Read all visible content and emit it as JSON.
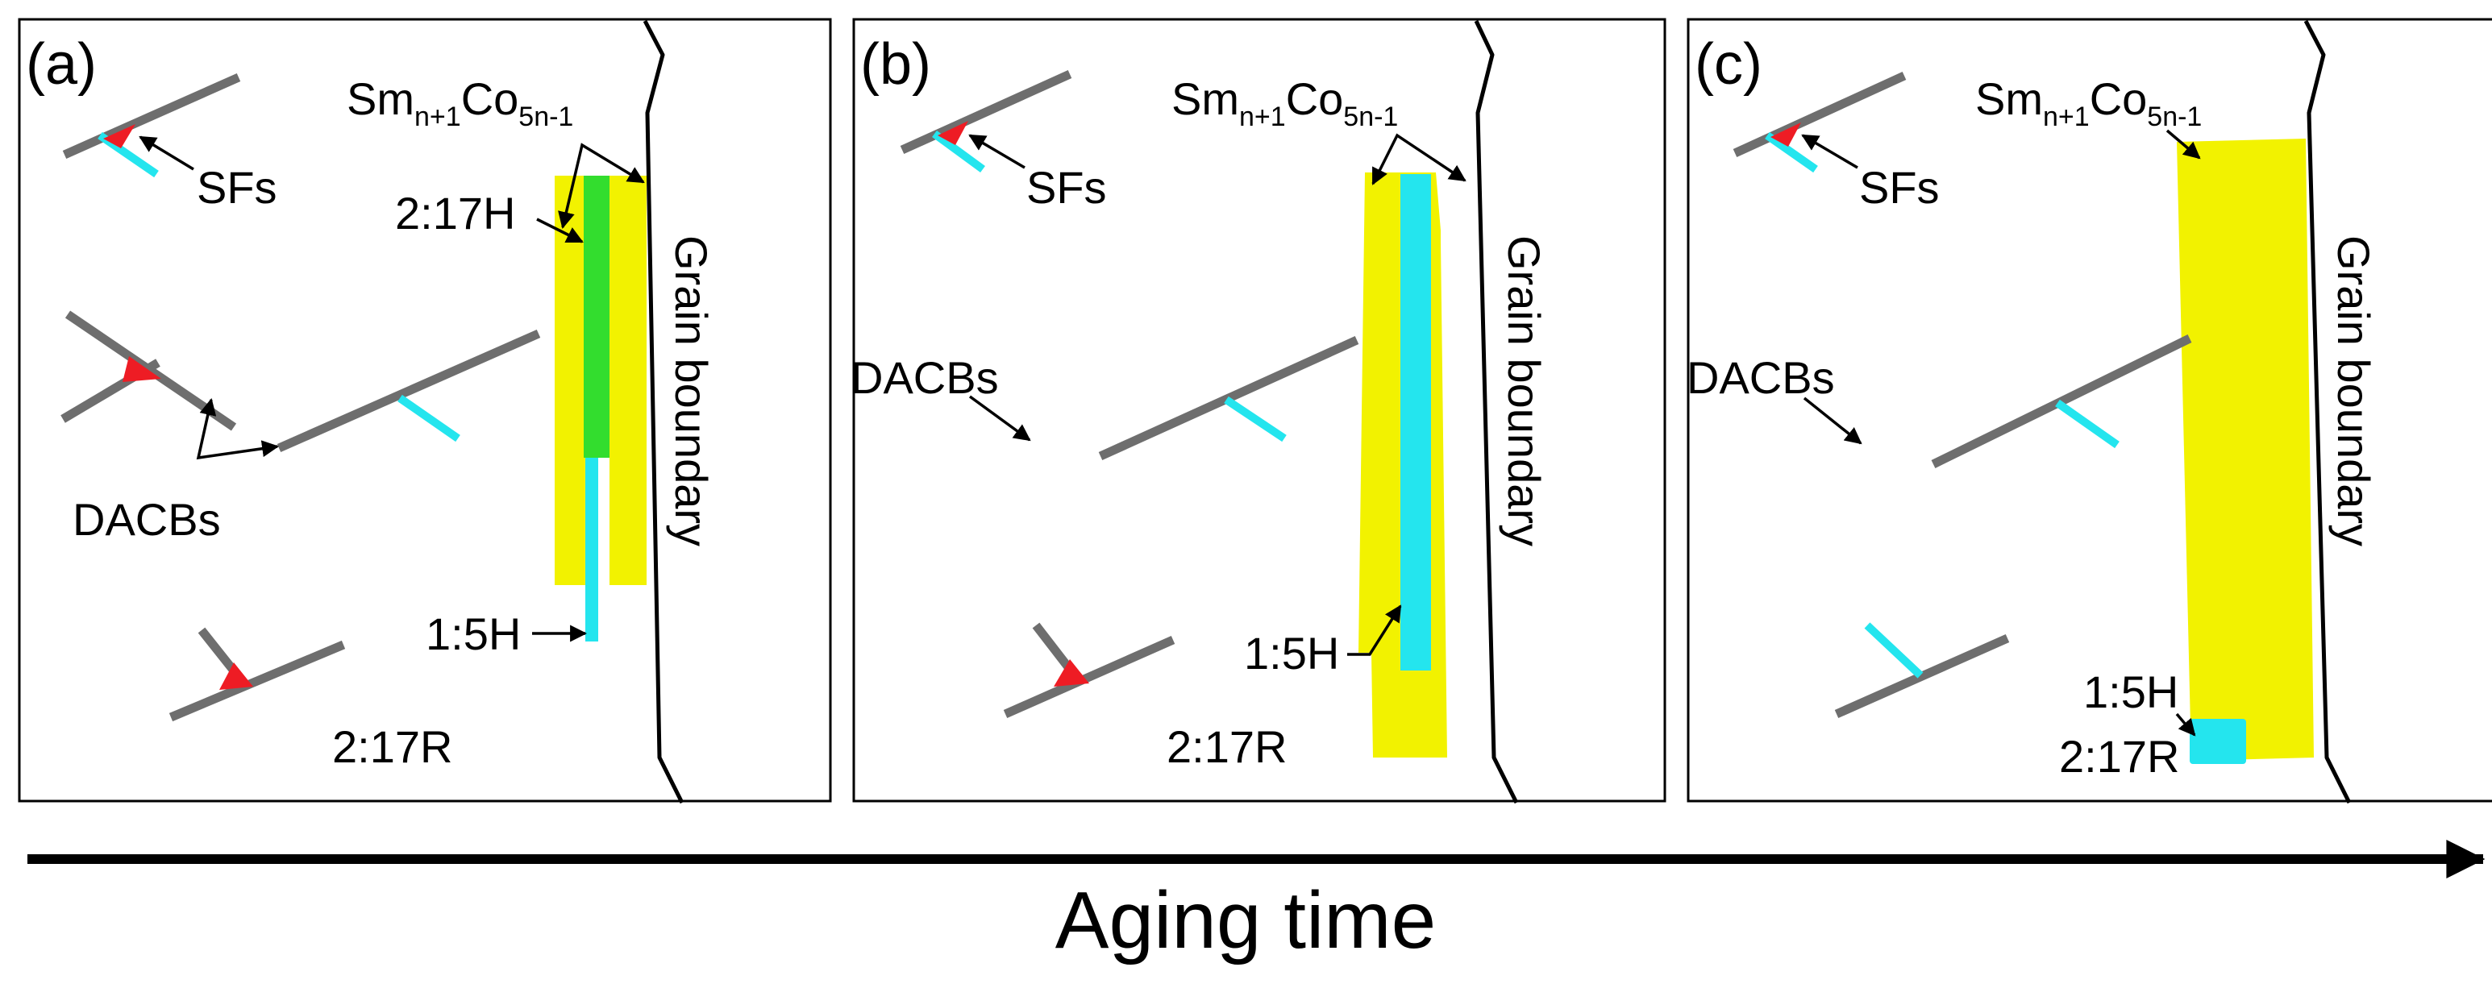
{
  "colors": {
    "dacb": "#6e6e6e",
    "sf": "#ee1c24",
    "cyan_phase": "#24e5ee",
    "yellow_phase": "#f2f200",
    "green_phase": "#33dd2e",
    "boundary": "#000000",
    "frame": "#000000"
  },
  "panels": [
    {
      "label": "(a)",
      "labels": {
        "sm_prefix": "Sm",
        "sm_sub1": "n+1",
        "co": "Co",
        "co_sub": "5n-1",
        "sfs": "SFs",
        "dacbs": "DACBs",
        "phase_2_17h": "2:17H",
        "phase_1_5h": "1:5H",
        "phase_2_17r": "2:17R",
        "grain_boundary": "Grain boundary"
      }
    },
    {
      "label": "(b)",
      "labels": {
        "sm_prefix": "Sm",
        "sm_sub1": "n+1",
        "co": "Co",
        "co_sub": "5n-1",
        "sfs": "SFs",
        "dacbs": "DACBs",
        "phase_1_5h": "1:5H",
        "phase_2_17r": "2:17R",
        "grain_boundary": "Grain boundary"
      }
    },
    {
      "label": "(c)",
      "labels": {
        "sm_prefix": "Sm",
        "sm_sub1": "n+1",
        "co": "Co",
        "co_sub": "5n-1",
        "sfs": "SFs",
        "dacbs": "DACBs",
        "phase_1_5h": "1:5H",
        "phase_2_17r": "2:17R",
        "grain_boundary": "Grain boundary"
      }
    }
  ],
  "axis": {
    "label": "Aging time"
  }
}
